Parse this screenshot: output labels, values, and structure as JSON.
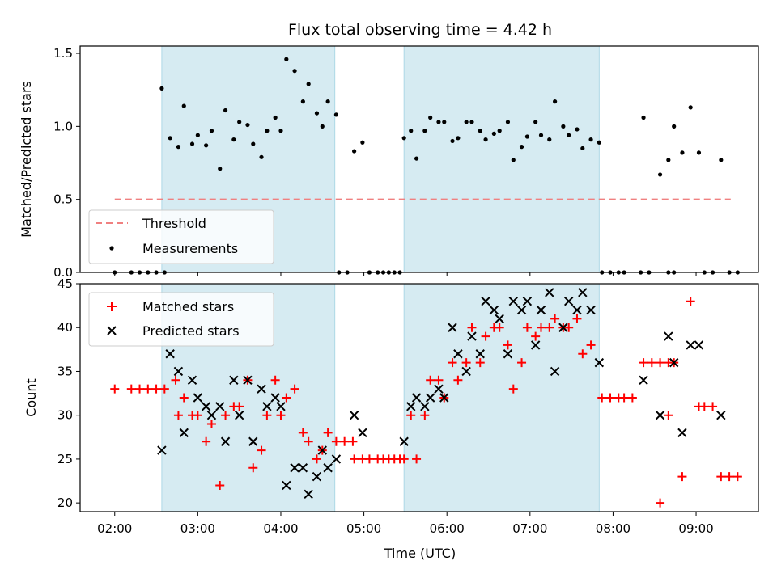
{
  "title": "Flux total observing time = 4.42 h",
  "chart_data": [
    {
      "type": "scatter",
      "ylabel": "Matched/Predicted stars",
      "xlim": [
        "01:35",
        "09:45"
      ],
      "ylim": [
        0,
        1.55
      ],
      "yticks": [
        "0.0",
        "0.5",
        "1.0",
        "1.5"
      ],
      "shaded_ranges": [
        [
          "02:34",
          "04:39"
        ],
        [
          "05:29",
          "07:50"
        ]
      ],
      "threshold": {
        "name": "Threshold",
        "value": 0.5,
        "x_range": [
          "02:00",
          "09:25"
        ],
        "color": "#f08080"
      },
      "legend_position": "lower-left",
      "series": [
        {
          "name": "Measurements",
          "color": "#000000",
          "marker": "dot",
          "points": [
            [
              "02:00",
              0.0
            ],
            [
              "02:12",
              0.0
            ],
            [
              "02:18",
              0.0
            ],
            [
              "02:24",
              0.0
            ],
            [
              "02:30",
              0.0
            ],
            [
              "02:36",
              0.0
            ],
            [
              "02:34",
              1.26
            ],
            [
              "02:40",
              0.92
            ],
            [
              "02:46",
              0.86
            ],
            [
              "02:50",
              1.14
            ],
            [
              "02:56",
              0.88
            ],
            [
              "03:00",
              0.94
            ],
            [
              "03:06",
              0.87
            ],
            [
              "03:10",
              0.97
            ],
            [
              "03:16",
              0.71
            ],
            [
              "03:20",
              1.11
            ],
            [
              "03:26",
              0.91
            ],
            [
              "03:30",
              1.03
            ],
            [
              "03:36",
              1.01
            ],
            [
              "03:40",
              0.88
            ],
            [
              "03:46",
              0.79
            ],
            [
              "03:50",
              0.97
            ],
            [
              "03:56",
              1.06
            ],
            [
              "04:00",
              0.97
            ],
            [
              "04:04",
              1.46
            ],
            [
              "04:10",
              1.38
            ],
            [
              "04:16",
              1.17
            ],
            [
              "04:20",
              1.29
            ],
            [
              "04:26",
              1.09
            ],
            [
              "04:30",
              1.0
            ],
            [
              "04:34",
              1.17
            ],
            [
              "04:40",
              1.08
            ],
            [
              "04:42",
              0.0
            ],
            [
              "04:48",
              0.0
            ],
            [
              "04:53",
              0.83
            ],
            [
              "04:59",
              0.89
            ],
            [
              "05:04",
              0.0
            ],
            [
              "05:10",
              0.0
            ],
            [
              "05:14",
              0.0
            ],
            [
              "05:18",
              0.0
            ],
            [
              "05:22",
              0.0
            ],
            [
              "05:26",
              0.0
            ],
            [
              "05:29",
              0.92
            ],
            [
              "05:34",
              0.97
            ],
            [
              "05:38",
              0.78
            ],
            [
              "05:44",
              0.97
            ],
            [
              "05:48",
              1.06
            ],
            [
              "05:54",
              1.03
            ],
            [
              "05:58",
              1.03
            ],
            [
              "06:04",
              0.9
            ],
            [
              "06:08",
              0.92
            ],
            [
              "06:14",
              1.03
            ],
            [
              "06:18",
              1.03
            ],
            [
              "06:24",
              0.97
            ],
            [
              "06:28",
              0.91
            ],
            [
              "06:34",
              0.95
            ],
            [
              "06:38",
              0.97
            ],
            [
              "06:44",
              1.03
            ],
            [
              "06:48",
              0.77
            ],
            [
              "06:54",
              0.86
            ],
            [
              "06:58",
              0.93
            ],
            [
              "07:04",
              1.03
            ],
            [
              "07:08",
              0.94
            ],
            [
              "07:14",
              0.91
            ],
            [
              "07:18",
              1.17
            ],
            [
              "07:24",
              1.0
            ],
            [
              "07:28",
              0.94
            ],
            [
              "07:34",
              0.98
            ],
            [
              "07:38",
              0.85
            ],
            [
              "07:44",
              0.91
            ],
            [
              "07:50",
              0.89
            ],
            [
              "07:52",
              0.0
            ],
            [
              "07:58",
              0.0
            ],
            [
              "08:04",
              0.0
            ],
            [
              "08:08",
              0.0
            ],
            [
              "08:20",
              0.0
            ],
            [
              "08:26",
              0.0
            ],
            [
              "08:40",
              0.0
            ],
            [
              "08:44",
              0.0
            ],
            [
              "08:22",
              1.06
            ],
            [
              "08:34",
              0.67
            ],
            [
              "08:40",
              0.77
            ],
            [
              "08:44",
              1.0
            ],
            [
              "08:50",
              0.82
            ],
            [
              "08:56",
              1.13
            ],
            [
              "09:02",
              0.82
            ],
            [
              "09:06",
              0.0
            ],
            [
              "09:12",
              0.0
            ],
            [
              "09:18",
              0.77
            ],
            [
              "09:24",
              0.0
            ],
            [
              "09:30",
              0.0
            ]
          ]
        }
      ]
    },
    {
      "type": "scatter",
      "xlabel": "Time (UTC)",
      "ylabel": "Count",
      "xlim": [
        "01:35",
        "09:45"
      ],
      "ylim": [
        19,
        45
      ],
      "yticks": [
        "20",
        "25",
        "30",
        "35",
        "40",
        "45"
      ],
      "xticks": [
        "02:00",
        "03:00",
        "04:00",
        "05:00",
        "06:00",
        "07:00",
        "08:00",
        "09:00"
      ],
      "shaded_ranges": [
        [
          "02:34",
          "04:39"
        ],
        [
          "05:29",
          "07:50"
        ]
      ],
      "legend_position": "upper-left",
      "series": [
        {
          "name": "Matched stars",
          "color": "#ff0000",
          "marker": "plus",
          "points": [
            [
              "02:00",
              33
            ],
            [
              "02:12",
              33
            ],
            [
              "02:18",
              33
            ],
            [
              "02:24",
              33
            ],
            [
              "02:30",
              33
            ],
            [
              "02:36",
              33
            ],
            [
              "02:44",
              34
            ],
            [
              "02:46",
              30
            ],
            [
              "02:50",
              32
            ],
            [
              "02:56",
              30
            ],
            [
              "03:00",
              30
            ],
            [
              "03:06",
              27
            ],
            [
              "03:10",
              29
            ],
            [
              "03:16",
              22
            ],
            [
              "03:20",
              30
            ],
            [
              "03:26",
              31
            ],
            [
              "03:30",
              31
            ],
            [
              "03:36",
              34
            ],
            [
              "03:40",
              24
            ],
            [
              "03:46",
              26
            ],
            [
              "03:50",
              30
            ],
            [
              "03:56",
              34
            ],
            [
              "04:00",
              30
            ],
            [
              "04:04",
              32
            ],
            [
              "04:10",
              33
            ],
            [
              "04:16",
              28
            ],
            [
              "04:20",
              27
            ],
            [
              "04:26",
              25
            ],
            [
              "04:30",
              26
            ],
            [
              "04:34",
              28
            ],
            [
              "04:40",
              27
            ],
            [
              "04:46",
              27
            ],
            [
              "04:52",
              27
            ],
            [
              "04:53",
              25
            ],
            [
              "04:59",
              25
            ],
            [
              "05:04",
              25
            ],
            [
              "05:10",
              25
            ],
            [
              "05:14",
              25
            ],
            [
              "05:18",
              25
            ],
            [
              "05:22",
              25
            ],
            [
              "05:26",
              25
            ],
            [
              "05:29",
              25
            ],
            [
              "05:34",
              30
            ],
            [
              "05:38",
              25
            ],
            [
              "05:44",
              30
            ],
            [
              "05:48",
              34
            ],
            [
              "05:54",
              34
            ],
            [
              "05:58",
              32
            ],
            [
              "06:04",
              36
            ],
            [
              "06:08",
              34
            ],
            [
              "06:14",
              36
            ],
            [
              "06:18",
              40
            ],
            [
              "06:24",
              36
            ],
            [
              "06:28",
              39
            ],
            [
              "06:34",
              40
            ],
            [
              "06:38",
              40
            ],
            [
              "06:44",
              38
            ],
            [
              "06:48",
              33
            ],
            [
              "06:54",
              36
            ],
            [
              "06:58",
              40
            ],
            [
              "07:04",
              39
            ],
            [
              "07:08",
              40
            ],
            [
              "07:14",
              40
            ],
            [
              "07:18",
              41
            ],
            [
              "07:24",
              40
            ],
            [
              "07:28",
              40
            ],
            [
              "07:34",
              41
            ],
            [
              "07:38",
              37
            ],
            [
              "07:44",
              38
            ],
            [
              "07:52",
              32
            ],
            [
              "07:58",
              32
            ],
            [
              "08:04",
              32
            ],
            [
              "08:08",
              32
            ],
            [
              "08:14",
              32
            ],
            [
              "08:22",
              36
            ],
            [
              "08:28",
              36
            ],
            [
              "08:34",
              36
            ],
            [
              "08:40",
              36
            ],
            [
              "08:44",
              36
            ],
            [
              "08:34",
              20
            ],
            [
              "08:40",
              30
            ],
            [
              "08:50",
              23
            ],
            [
              "08:56",
              43
            ],
            [
              "09:02",
              31
            ],
            [
              "09:06",
              31
            ],
            [
              "09:12",
              31
            ],
            [
              "09:18",
              23
            ],
            [
              "09:24",
              23
            ],
            [
              "09:30",
              23
            ]
          ]
        },
        {
          "name": "Predicted stars",
          "color": "#000000",
          "marker": "x",
          "points": [
            [
              "02:34",
              26
            ],
            [
              "02:40",
              37
            ],
            [
              "02:46",
              35
            ],
            [
              "02:50",
              28
            ],
            [
              "02:56",
              34
            ],
            [
              "03:00",
              32
            ],
            [
              "03:06",
              31
            ],
            [
              "03:10",
              30
            ],
            [
              "03:16",
              31
            ],
            [
              "03:20",
              27
            ],
            [
              "03:26",
              34
            ],
            [
              "03:30",
              30
            ],
            [
              "03:36",
              34
            ],
            [
              "03:40",
              27
            ],
            [
              "03:46",
              33
            ],
            [
              "03:50",
              31
            ],
            [
              "03:56",
              32
            ],
            [
              "04:00",
              31
            ],
            [
              "04:04",
              22
            ],
            [
              "04:10",
              24
            ],
            [
              "04:16",
              24
            ],
            [
              "04:20",
              21
            ],
            [
              "04:26",
              23
            ],
            [
              "04:30",
              26
            ],
            [
              "04:34",
              24
            ],
            [
              "04:40",
              25
            ],
            [
              "04:53",
              30
            ],
            [
              "04:59",
              28
            ],
            [
              "05:29",
              27
            ],
            [
              "05:34",
              31
            ],
            [
              "05:38",
              32
            ],
            [
              "05:44",
              31
            ],
            [
              "05:48",
              32
            ],
            [
              "05:54",
              33
            ],
            [
              "05:58",
              32
            ],
            [
              "06:04",
              40
            ],
            [
              "06:08",
              37
            ],
            [
              "06:14",
              35
            ],
            [
              "06:18",
              39
            ],
            [
              "06:24",
              37
            ],
            [
              "06:28",
              43
            ],
            [
              "06:34",
              42
            ],
            [
              "06:38",
              41
            ],
            [
              "06:44",
              37
            ],
            [
              "06:48",
              43
            ],
            [
              "06:54",
              42
            ],
            [
              "06:58",
              43
            ],
            [
              "07:04",
              38
            ],
            [
              "07:08",
              42
            ],
            [
              "07:14",
              44
            ],
            [
              "07:18",
              35
            ],
            [
              "07:24",
              40
            ],
            [
              "07:28",
              43
            ],
            [
              "07:34",
              42
            ],
            [
              "07:38",
              44
            ],
            [
              "07:44",
              42
            ],
            [
              "07:50",
              36
            ],
            [
              "08:22",
              34
            ],
            [
              "08:34",
              30
            ],
            [
              "08:40",
              39
            ],
            [
              "08:44",
              36
            ],
            [
              "08:50",
              28
            ],
            [
              "08:56",
              38
            ],
            [
              "09:02",
              38
            ],
            [
              "09:18",
              30
            ]
          ]
        }
      ]
    }
  ]
}
